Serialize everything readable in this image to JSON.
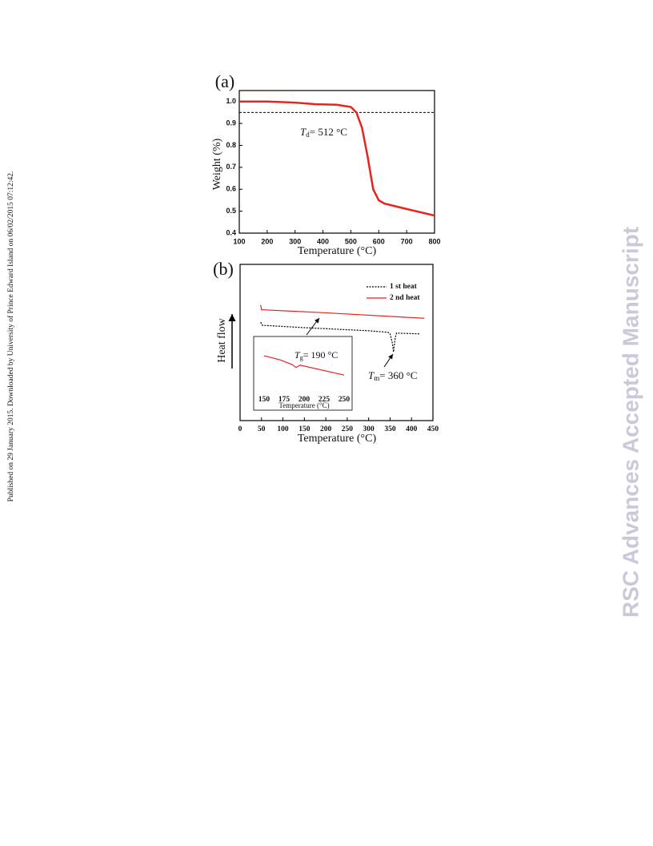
{
  "sidebar": "Published on 29 January 2015. Downloaded by University of Prince Edward Island on 06/02/2015 07:12:42.",
  "watermark": "RSC Advances Accepted Manuscript",
  "chart_data": [
    {
      "type": "line",
      "panel": "(a)",
      "x_label": "Temperature (°C)",
      "y_label": "Weight (%)",
      "x": [
        100,
        200,
        300,
        370,
        450,
        500,
        520,
        540,
        560,
        580,
        600,
        620,
        700,
        800
      ],
      "values": [
        1.0,
        1.0,
        0.995,
        0.988,
        0.985,
        0.975,
        0.95,
        0.88,
        0.75,
        0.6,
        0.55,
        0.535,
        0.51,
        0.48
      ],
      "color": "#e8221f",
      "xlim": [
        100,
        800
      ],
      "xticks": [
        100,
        200,
        300,
        400,
        500,
        600,
        700,
        800
      ],
      "ylim": [
        0.4,
        1.05
      ],
      "yticks": [
        0.4,
        0.5,
        0.6,
        0.7,
        0.8,
        0.9,
        {
          "value": 1,
          "label": "1.0"
        }
      ],
      "reference_line": 0.95,
      "annotation": {
        "symbol": "T",
        "subscript": "d",
        "text": "= 512 °C"
      }
    },
    {
      "type": "line",
      "panel": "(b)",
      "x_label": "Temperature (°C)",
      "y_label": "Heat flow",
      "xlim": [
        0,
        450
      ],
      "xticks": [
        0,
        50,
        100,
        150,
        200,
        250,
        300,
        350,
        400,
        450
      ],
      "ylim": [
        0,
        10
      ],
      "series": [
        {
          "name": "1 st heat",
          "color": "#000000",
          "dashed": true,
          "x": [
            48,
            52,
            150,
            300,
            345,
            350,
            355,
            358,
            362,
            365,
            420
          ],
          "values": [
            6.3,
            6.1,
            5.95,
            5.75,
            5.65,
            5.55,
            5.0,
            4.4,
            5.3,
            5.6,
            5.55
          ]
        },
        {
          "name": "2 nd heat",
          "color": "#e8221f",
          "dashed": false,
          "x": [
            48,
            50,
            200,
            430
          ],
          "values": [
            7.4,
            7.1,
            6.9,
            6.55
          ]
        }
      ],
      "annotation": {
        "symbol": "T",
        "subscript": "m",
        "text": "= 360 °C"
      }
    },
    {
      "type": "line",
      "x_label": "Temperature (°C)",
      "xlim": [
        137,
        260
      ],
      "xticks": [
        150,
        175,
        200,
        225,
        250
      ],
      "ylim": [
        0,
        10
      ],
      "series": [
        {
          "color": "#e8221f",
          "dashed": false,
          "x": [
            150,
            170,
            185,
            190,
            195,
            250
          ],
          "values": [
            6.7,
            6.0,
            5.2,
            4.7,
            5.1,
            3.4
          ]
        }
      ],
      "annotation": {
        "symbol": "T",
        "subscript": "g",
        "text": "= 190 °C"
      }
    }
  ]
}
